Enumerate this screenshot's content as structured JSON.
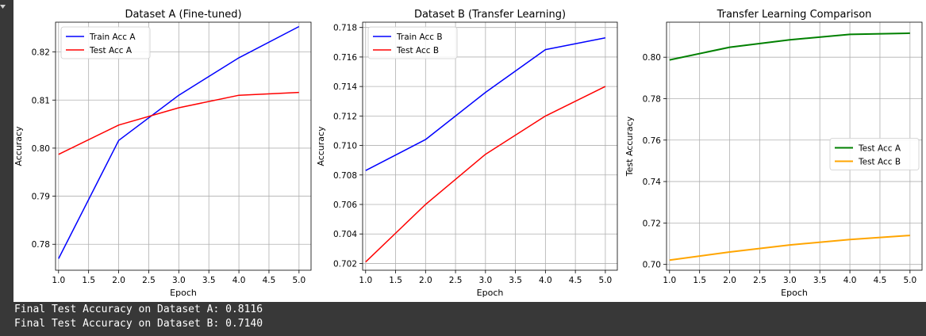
{
  "chart_data": [
    {
      "type": "line",
      "title": "Dataset A (Fine-tuned)",
      "xlabel": "Epoch",
      "ylabel": "Accuracy",
      "x": [
        1,
        2,
        3,
        4,
        5
      ],
      "xlim": [
        0.95,
        5.2
      ],
      "ylim": [
        0.7746,
        0.8262
      ],
      "xticks": [
        "1.0",
        "1.5",
        "2.0",
        "2.5",
        "3.0",
        "3.5",
        "4.0",
        "4.5",
        "5.0"
      ],
      "yticks": [
        "0.78",
        "0.79",
        "0.80",
        "0.81",
        "0.82"
      ],
      "grid": true,
      "legend": "top-left",
      "series": [
        {
          "name": "Train Acc A",
          "color": "#0000ff",
          "values": [
            0.777,
            0.8016,
            0.811,
            0.8188,
            0.8253
          ]
        },
        {
          "name": "Test Acc A",
          "color": "#ff0000",
          "values": [
            0.7987,
            0.8048,
            0.8084,
            0.811,
            0.8116
          ]
        }
      ]
    },
    {
      "type": "line",
      "title": "Dataset B (Transfer Learning)",
      "xlabel": "Epoch",
      "ylabel": "Accuracy",
      "x": [
        1,
        2,
        3,
        4,
        5
      ],
      "xlim": [
        0.95,
        5.2
      ],
      "ylim": [
        0.70154,
        0.71836
      ],
      "xticks": [
        "1.0",
        "1.5",
        "2.0",
        "2.5",
        "3.0",
        "3.5",
        "4.0",
        "4.5",
        "5.0"
      ],
      "yticks": [
        "0.702",
        "0.704",
        "0.706",
        "0.708",
        "0.710",
        "0.712",
        "0.714",
        "0.716",
        "0.718"
      ],
      "grid": true,
      "legend": "top-left",
      "series": [
        {
          "name": "Train Acc B",
          "color": "#0000ff",
          "values": [
            0.7083,
            0.7104,
            0.7136,
            0.7165,
            0.7173
          ]
        },
        {
          "name": "Test Acc B",
          "color": "#ff0000",
          "values": [
            0.7021,
            0.706,
            0.7094,
            0.712,
            0.714
          ]
        }
      ]
    },
    {
      "type": "line",
      "title": "Transfer Learning Comparison",
      "xlabel": "Epoch",
      "ylabel": "Test Accuracy",
      "x": [
        1,
        2,
        3,
        4,
        5
      ],
      "xlim": [
        0.95,
        5.2
      ],
      "ylim": [
        0.6972,
        0.8169
      ],
      "xticks": [
        "1.0",
        "1.5",
        "2.0",
        "2.5",
        "3.0",
        "3.5",
        "4.0",
        "4.5",
        "5.0"
      ],
      "yticks": [
        "0.70",
        "0.72",
        "0.74",
        "0.76",
        "0.78",
        "0.80"
      ],
      "grid": true,
      "legend": "center-right",
      "series": [
        {
          "name": "Test Acc A",
          "color": "#008000",
          "values": [
            0.7987,
            0.8048,
            0.8084,
            0.811,
            0.8116
          ]
        },
        {
          "name": "Test Acc B",
          "color": "#ffa500",
          "values": [
            0.7021,
            0.706,
            0.7094,
            0.712,
            0.714
          ]
        }
      ]
    }
  ],
  "output": {
    "line_a": "Final Test Accuracy on Dataset A: 0.8116",
    "line_b": "Final Test Accuracy on Dataset B: 0.7140"
  }
}
